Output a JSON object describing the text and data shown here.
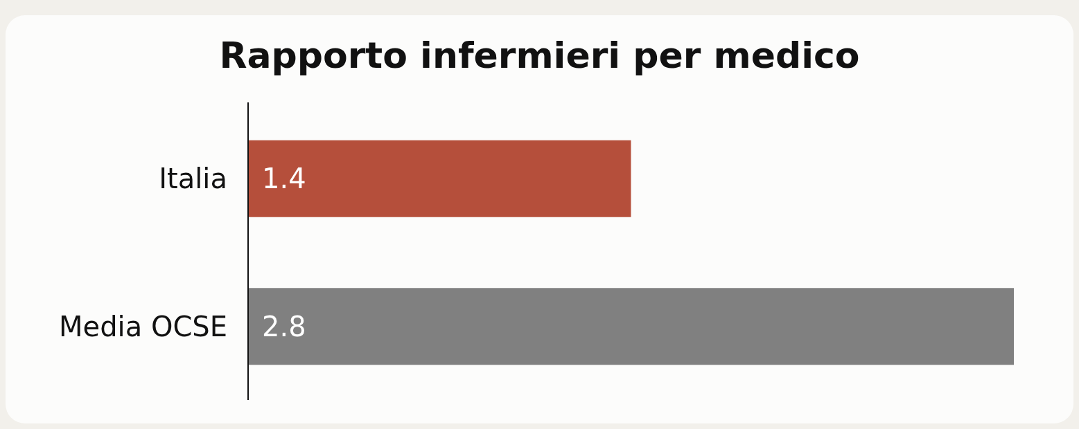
{
  "chart_data": {
    "type": "bar",
    "orientation": "horizontal",
    "title": "Rapporto infermieri per medico",
    "categories": [
      "Italia",
      "Media OCSE"
    ],
    "values": [
      1.4,
      2.8
    ],
    "colors": [
      "#b54f3b",
      "#808080"
    ],
    "data_labels": true
  }
}
